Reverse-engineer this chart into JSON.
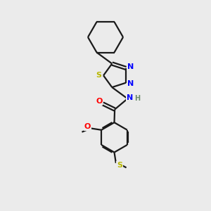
{
  "background_color": "#ebebeb",
  "bond_color": "#1a1a1a",
  "atom_colors": {
    "N": "#0000ff",
    "O": "#ff0000",
    "S": "#b8b800",
    "H": "#6a8a6a",
    "C": "#1a1a1a"
  },
  "figsize": [
    3.0,
    3.0
  ],
  "dpi": 100
}
